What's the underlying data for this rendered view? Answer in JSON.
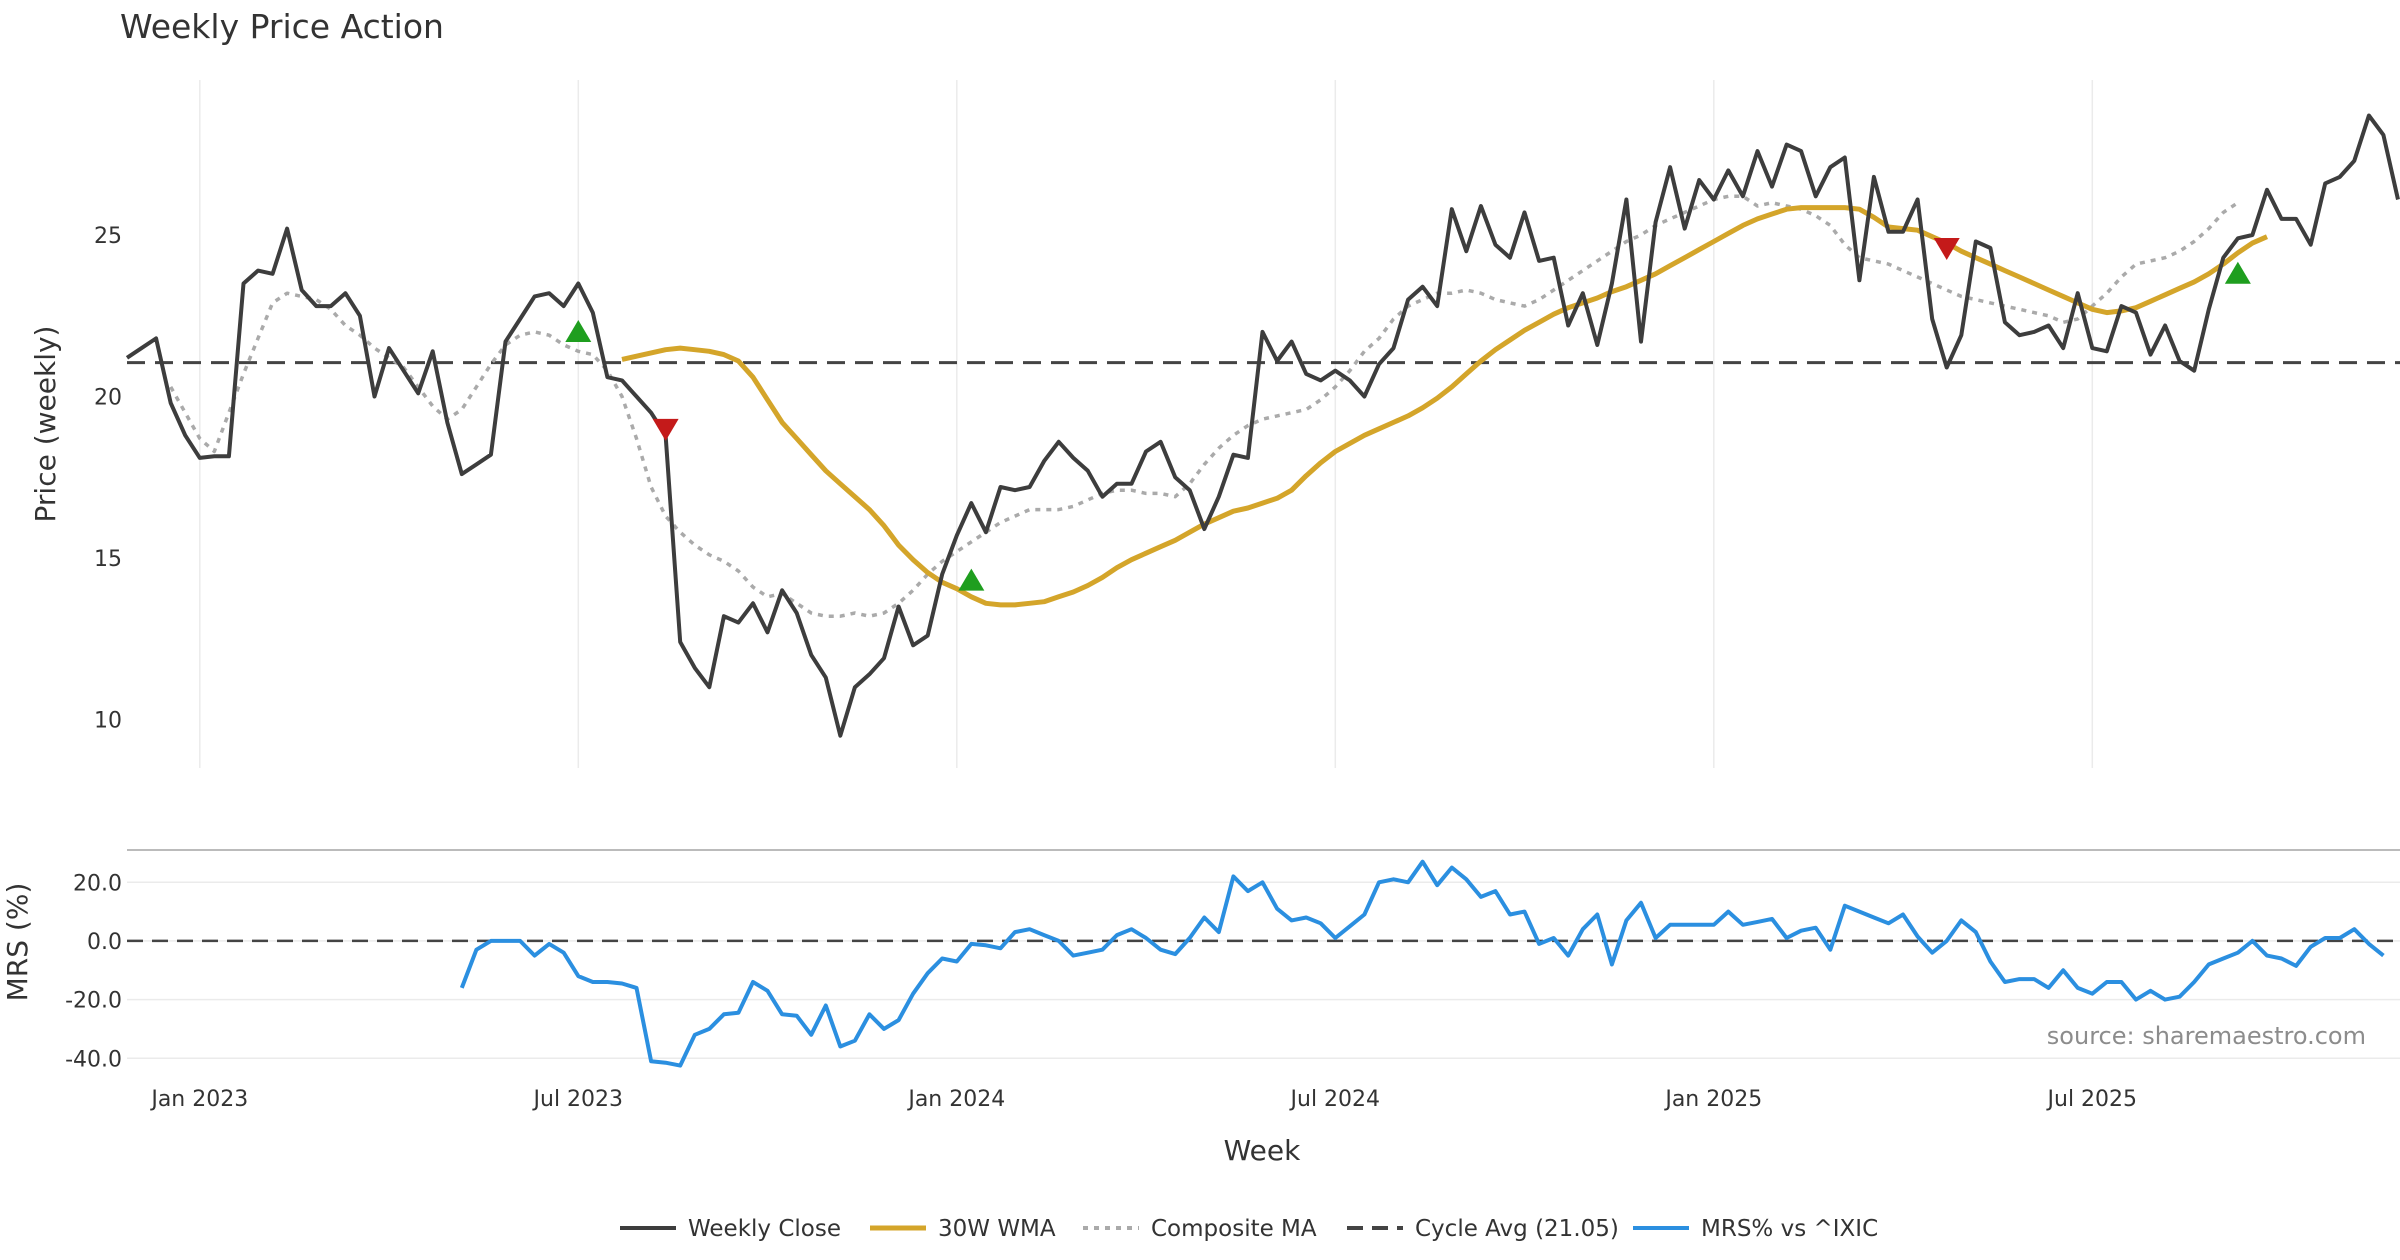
{
  "chart_data": {
    "type": "line",
    "title": "Weekly Price Action",
    "xlabel": "Week",
    "price_ylabel": "Price (weekly)",
    "mrs_ylabel": "MRS (%)",
    "x_tick_labels": [
      "Jan 2023",
      "Jul 2023",
      "Jan 2024",
      "Jul 2024",
      "Jan 2025",
      "Jul 2025"
    ],
    "price_ticks": [
      10,
      15,
      20,
      25
    ],
    "price_ylim": [
      8.5,
      29.8
    ],
    "mrs_ticks": [
      -40,
      -20,
      0,
      20
    ],
    "mrs_tick_labels": [
      "-40.0",
      "-20.0",
      "0.0",
      "20.0"
    ],
    "mrs_ylim": [
      -44,
      31
    ],
    "cycle_avg": 21.05,
    "source_note": "source: sharemaestro.com",
    "legend": [
      {
        "key": "weekly",
        "label": "Weekly Close",
        "color": "#3d3d3d",
        "style": "solid"
      },
      {
        "key": "wma",
        "label": "30W WMA",
        "color": "#d4a52a",
        "style": "solid"
      },
      {
        "key": "comp",
        "label": "Composite MA",
        "color": "#aaaaaa",
        "style": "dotted"
      },
      {
        "key": "cycle",
        "label": "Cycle Avg (21.05)",
        "color": "#444444",
        "style": "dashed"
      },
      {
        "key": "mrs",
        "label": "MRS% vs ^IXIC",
        "color": "#2b8fe0",
        "style": "solid"
      }
    ],
    "weekly_close": [
      21.2,
      21.5,
      21.8,
      19.8,
      18.8,
      18.1,
      18.15,
      18.15,
      23.5,
      23.9,
      23.8,
      25.2,
      23.3,
      22.8,
      22.8,
      23.2,
      22.5,
      20.0,
      21.5,
      20.8,
      20.1,
      21.4,
      19.2,
      17.6,
      17.9,
      18.2,
      21.7,
      22.4,
      23.1,
      23.2,
      22.8,
      23.5,
      22.6,
      20.6,
      20.5,
      20.0,
      19.5,
      18.8,
      12.4,
      11.6,
      11.0,
      13.2,
      13.0,
      13.6,
      12.7,
      14.0,
      13.3,
      12.0,
      11.3,
      9.5,
      11.0,
      11.4,
      11.9,
      13.5,
      12.3,
      12.6,
      14.5,
      15.7,
      16.7,
      15.8,
      17.2,
      17.1,
      17.2,
      18.0,
      18.6,
      18.1,
      17.7,
      16.9,
      17.3,
      17.3,
      18.3,
      18.6,
      17.5,
      17.1,
      15.9,
      16.9,
      18.2,
      18.1,
      22.0,
      21.1,
      21.7,
      20.7,
      20.5,
      20.8,
      20.5,
      20.0,
      21.0,
      21.5,
      23.0,
      23.4,
      22.8,
      25.8,
      24.5,
      25.9,
      24.7,
      24.3,
      25.7,
      24.2,
      24.3,
      22.2,
      23.2,
      21.6,
      23.5,
      26.1,
      21.7,
      25.4,
      27.1,
      25.2,
      26.7,
      26.1,
      27.0,
      26.2,
      27.6,
      26.5,
      27.8,
      27.6,
      26.2,
      27.1,
      27.4,
      23.6,
      26.8,
      25.1,
      25.1,
      26.1,
      22.4,
      20.9,
      21.9,
      24.8,
      24.6,
      22.3,
      21.9,
      22.0,
      22.2,
      21.5,
      23.2,
      21.5,
      21.4,
      22.8,
      22.6,
      21.3,
      22.2,
      21.1,
      20.8,
      22.7,
      24.3,
      24.9,
      25.0,
      26.4,
      25.5,
      25.5,
      24.7,
      26.6,
      26.8,
      27.3,
      28.7,
      28.1,
      26.1
    ],
    "wma_30w": {
      "start": 34,
      "values": [
        21.15,
        21.25,
        21.35,
        21.45,
        21.5,
        21.45,
        21.4,
        21.3,
        21.1,
        20.6,
        19.9,
        19.2,
        18.7,
        18.2,
        17.7,
        17.3,
        16.9,
        16.5,
        16.0,
        15.4,
        14.95,
        14.55,
        14.25,
        14.05,
        13.8,
        13.6,
        13.55,
        13.55,
        13.6,
        13.65,
        13.8,
        13.95,
        14.15,
        14.4,
        14.7,
        14.95,
        15.15,
        15.35,
        15.55,
        15.8,
        16.05,
        16.25,
        16.45,
        16.55,
        16.7,
        16.85,
        17.1,
        17.55,
        17.95,
        18.3,
        18.55,
        18.8,
        19.0,
        19.2,
        19.4,
        19.65,
        19.95,
        20.3,
        20.7,
        21.1,
        21.45,
        21.75,
        22.05,
        22.3,
        22.55,
        22.75,
        22.9,
        23.05,
        23.25,
        23.4,
        23.6,
        23.8,
        24.05,
        24.3,
        24.55,
        24.8,
        25.05,
        25.3,
        25.5,
        25.65,
        25.8,
        25.85,
        25.85,
        25.85,
        25.85,
        25.8,
        25.55,
        25.25,
        25.2,
        25.15,
        24.95,
        24.75,
        24.5,
        24.3,
        24.1,
        23.9,
        23.7,
        23.5,
        23.3,
        23.1,
        22.9,
        22.7,
        22.6,
        22.65,
        22.75,
        22.95,
        23.15,
        23.35,
        23.55,
        23.8,
        24.1,
        24.45,
        24.75,
        24.95
      ]
    },
    "composite_ma": {
      "start": 3,
      "values": [
        20.3,
        19.5,
        18.7,
        18.3,
        19.5,
        20.7,
        21.8,
        22.9,
        23.2,
        23.1,
        23.0,
        22.7,
        22.2,
        21.9,
        21.5,
        21.2,
        20.9,
        20.3,
        19.7,
        19.3,
        19.6,
        20.3,
        21.0,
        21.6,
        21.9,
        22.0,
        21.9,
        21.6,
        21.4,
        21.3,
        20.8,
        20.0,
        18.7,
        17.2,
        16.3,
        15.8,
        15.4,
        15.1,
        14.9,
        14.6,
        14.1,
        13.8,
        13.9,
        13.6,
        13.3,
        13.2,
        13.2,
        13.3,
        13.2,
        13.3,
        13.6,
        14.0,
        14.5,
        14.9,
        15.2,
        15.5,
        15.8,
        16.1,
        16.3,
        16.5,
        16.5,
        16.5,
        16.6,
        16.8,
        17.0,
        17.1,
        17.1,
        17.0,
        17.0,
        16.9,
        17.3,
        17.9,
        18.4,
        18.8,
        19.1,
        19.3,
        19.4,
        19.5,
        19.6,
        19.9,
        20.3,
        20.8,
        21.4,
        21.8,
        22.4,
        22.8,
        23.0,
        23.2,
        23.2,
        23.3,
        23.2,
        23.0,
        22.9,
        22.8,
        23.0,
        23.3,
        23.6,
        23.9,
        24.2,
        24.5,
        24.8,
        25.0,
        25.3,
        25.5,
        25.7,
        25.9,
        26.1,
        26.2,
        26.2,
        25.9,
        26.0,
        25.9,
        25.8,
        25.6,
        25.3,
        24.7,
        24.3,
        24.2,
        24.1,
        23.9,
        23.7,
        23.5,
        23.3,
        23.1,
        23.0,
        22.9,
        22.8,
        22.7,
        22.6,
        22.5,
        22.3,
        22.4,
        22.8,
        23.2,
        23.7,
        24.1,
        24.2,
        24.3,
        24.5,
        24.8,
        25.2,
        25.7,
        26.0
      ]
    },
    "signals": [
      {
        "type": "buy",
        "index": 31,
        "value": 22.0
      },
      {
        "type": "sell",
        "index": 37,
        "value": 19.0
      },
      {
        "type": "buy",
        "index": 58,
        "value": 14.3
      },
      {
        "type": "sell",
        "index": 125,
        "value": 24.6
      },
      {
        "type": "buy",
        "index": 145,
        "value": 23.8
      }
    ],
    "mrs": {
      "start": 23,
      "values": [
        -16,
        -3,
        0,
        0,
        0,
        -5,
        -1,
        -4,
        -12,
        -14,
        -14,
        -14.5,
        -16,
        -41,
        -41.5,
        -42.5,
        -32,
        -30,
        -25,
        -24.5,
        -14,
        -17,
        -25,
        -25.5,
        -32,
        -22,
        -36,
        -34,
        -25,
        -30,
        -27,
        -18,
        -11,
        -6,
        -7,
        -1,
        -1.5,
        -2.5,
        3,
        4,
        2,
        0,
        -5,
        -4,
        -3,
        2,
        4,
        1,
        -3,
        -4.5,
        1,
        8,
        3,
        22,
        17,
        20,
        11,
        7,
        8,
        6,
        1,
        5,
        9,
        20,
        21,
        20,
        27,
        19,
        25,
        21,
        15,
        17,
        9,
        10,
        -1,
        1,
        -5,
        4,
        9,
        -8,
        7,
        13,
        1,
        5.5,
        5.5,
        5.5,
        5.5,
        10,
        5.5,
        6.5,
        7.5,
        1,
        3.5,
        4.5,
        -3,
        12,
        10,
        8,
        6,
        9,
        1.5,
        -4,
        0,
        7,
        3,
        -7,
        -14,
        -13,
        -13,
        -16,
        -10,
        -16,
        -18,
        -14,
        -14,
        -20,
        -17,
        -20,
        -19,
        -14,
        -8,
        -6,
        -4,
        0,
        -5,
        -6,
        -8.5,
        -2,
        1,
        1,
        4,
        -1,
        -5
      ]
    }
  }
}
